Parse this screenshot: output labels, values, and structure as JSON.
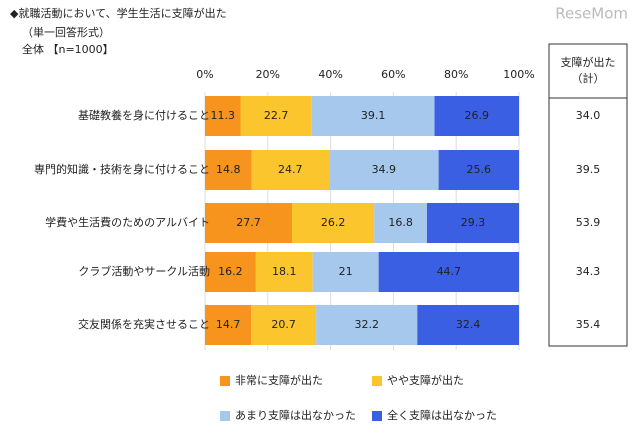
{
  "chart_data": {
    "type": "stacked-bar-horizontal",
    "title": "◆就職活動において、学生生活に支障が出た",
    "subtitle": [
      "（単一回答形式）",
      "全体 【n=1000】"
    ],
    "watermark": "ReseMom",
    "categories": [
      "基礎教養を身に付けること",
      "専門的知識・技術を身に付けること",
      "学費や生活費のためのアルバイト",
      "クラブ活動やサークル活動",
      "交友関係を充実させること"
    ],
    "series": [
      {
        "name": "非常に支障が出た",
        "color": "#f7941d",
        "values": [
          11.3,
          14.8,
          27.7,
          16.2,
          14.7
        ]
      },
      {
        "name": "やや支障が出た",
        "color": "#fbc52d",
        "values": [
          22.7,
          24.7,
          26.2,
          18.1,
          20.7
        ]
      },
      {
        "name": "あまり支障は出なかった",
        "color": "#a5c8ec",
        "values": [
          39.1,
          34.9,
          16.8,
          21.0,
          32.2
        ]
      },
      {
        "name": "全く支障は出なかった",
        "color": "#3b5fe3",
        "values": [
          26.9,
          25.6,
          29.3,
          44.7,
          32.4
        ]
      }
    ],
    "xlim": [
      0,
      100
    ],
    "xticks": [
      {
        "value": 0,
        "label": "0%"
      },
      {
        "value": 20,
        "label": "20%"
      },
      {
        "value": 40,
        "label": "40%"
      },
      {
        "value": 60,
        "label": "60%"
      },
      {
        "value": 80,
        "label": "80%"
      },
      {
        "value": 100,
        "label": "100%"
      }
    ],
    "grid": true,
    "totals": {
      "title": [
        "支障が出た",
        "（計）"
      ],
      "values": [
        34.0,
        39.5,
        53.9,
        34.3,
        35.4
      ],
      "value_labels": [
        "34.0",
        "39.5",
        "53.9",
        "34.3",
        "35.4"
      ]
    }
  }
}
